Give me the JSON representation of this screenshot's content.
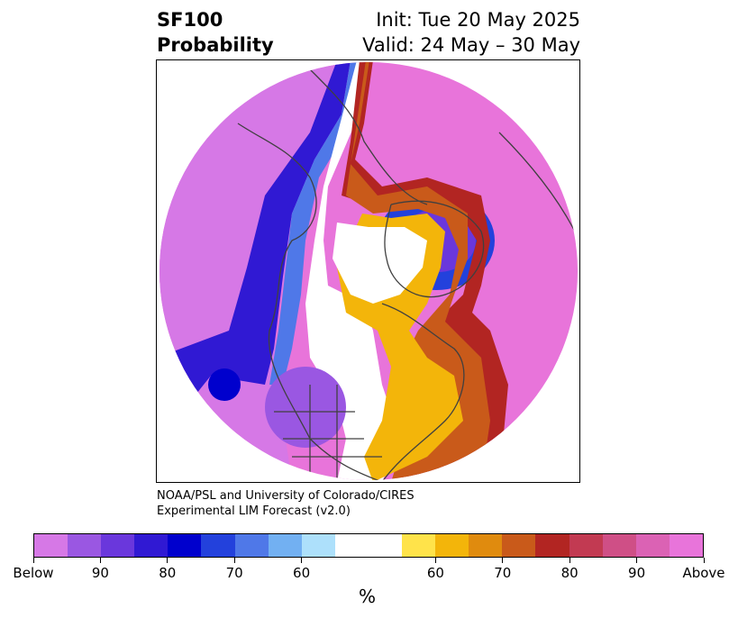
{
  "title": {
    "left_line1": "SF100",
    "left_line2": "Probability",
    "right_line1": "Init: Tue 20 May 2025",
    "right_line2": "Valid: 24 May – 30 May"
  },
  "credit": {
    "line1": "NOAA/PSL and University of Colorado/CIRES",
    "line2": "Experimental LIM Forecast (v2.0)"
  },
  "colorbar": {
    "colors": [
      "#d678e6",
      "#9a57e2",
      "#6a37dc",
      "#3019d3",
      "#0000cd",
      "#2341dc",
      "#4f78e8",
      "#72b0f2",
      "#ade0fb",
      "#ffffff",
      "#ffffff",
      "#ffe34a",
      "#f3b50a",
      "#e08b0e",
      "#c95a1a",
      "#b22522",
      "#c23a52",
      "#cf4f86",
      "#db62b4",
      "#e874da"
    ],
    "tick_labels": [
      "Below",
      "90",
      "80",
      "70",
      "60",
      "60",
      "70",
      "80",
      "90",
      "Above"
    ],
    "unit": "%"
  },
  "map_palette": {
    "above_pink": "#e874da",
    "below_violet": "#d678e6",
    "blue": "#0000cd",
    "orange": "#c95a1a",
    "yellow": "#f3b50a",
    "red": "#b22522",
    "coastline": "#404040"
  }
}
